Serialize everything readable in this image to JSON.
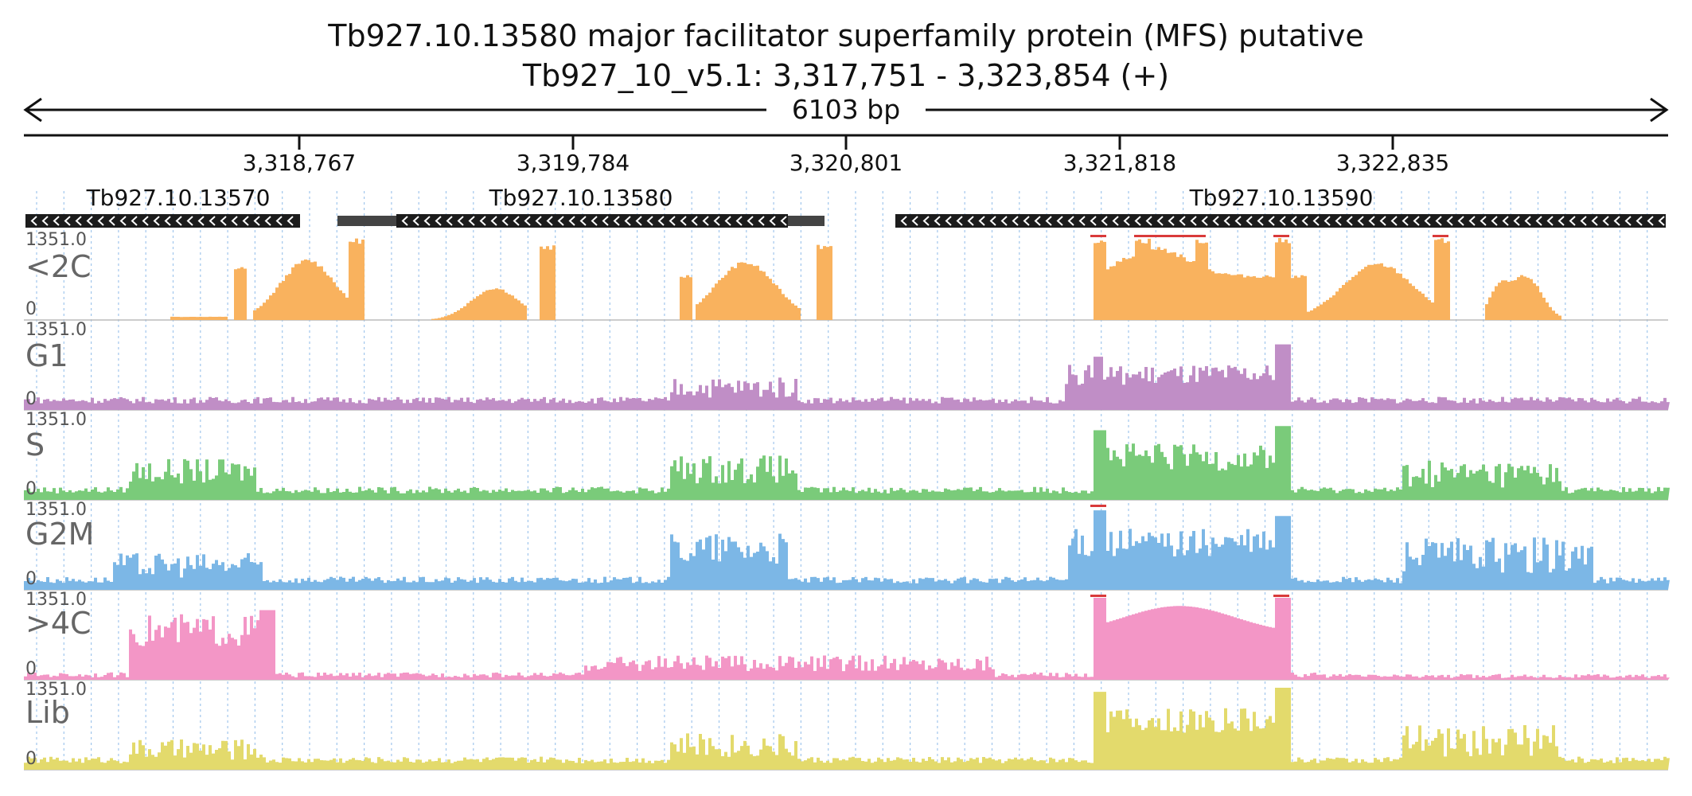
{
  "header": {
    "title_line1": "Tb927.10.13580  major facilitator superfamily protein (MFS)  putative",
    "title_line2": "Tb927_10_v5.1: 3,317,751 - 3,323,854 (+)",
    "span_label": "6103 bp"
  },
  "ruler": {
    "ticks": [
      "3,318,767",
      "3,319,784",
      "3,320,801",
      "3,321,818",
      "3,322,835"
    ]
  },
  "genes": [
    {
      "name": "Tb927.10.13570",
      "strand": "-"
    },
    {
      "name": "Tb927.10.13580",
      "strand": "-"
    },
    {
      "name": "Tb927.10.13590",
      "strand": "-"
    }
  ],
  "colors": {
    "<2C": "#f9b25e",
    "G1": "#c08ec6",
    "S": "#7acb7a",
    "G2M": "#7cb7e6",
    ">4C": "#f396c6",
    "Lib": "#e3da6c",
    "gene": "#1c1c1c",
    "clip": "#d93a3a",
    "grid": "#8ab8e8"
  },
  "chart_data": {
    "type": "area",
    "xlim": [
      3317751,
      3323854
    ],
    "ylim": [
      0,
      1351.0
    ],
    "tracks": [
      {
        "name": "<2C",
        "max_label": "1351.0",
        "min_label": "0"
      },
      {
        "name": "G1",
        "max_label": "1351.0",
        "min_label": "0"
      },
      {
        "name": "S",
        "max_label": "1351.0",
        "min_label": "0"
      },
      {
        "name": "G2M",
        "max_label": "1351.0",
        "min_label": "0"
      },
      {
        "name": ">4C",
        "max_label": "1351.0",
        "min_label": "0"
      },
      {
        "name": "Lib",
        "max_label": "1351.0",
        "min_label": "0"
      }
    ],
    "grid": true
  }
}
